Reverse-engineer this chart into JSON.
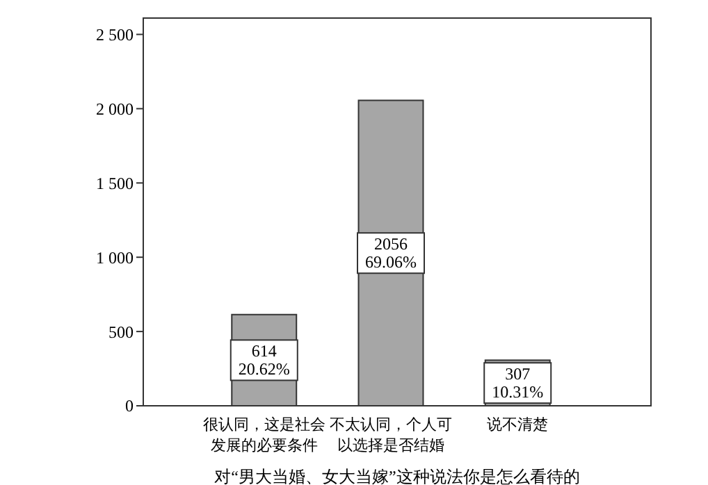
{
  "chart_data": {
    "type": "bar",
    "xlabel": "对“男大当婚、女大当嫁”这种说法你是怎么看待的",
    "categories": [
      "很认同，这是社会发展的必要条件",
      "不太认同，个人可以选择是否结婚",
      "说不清楚"
    ],
    "values": [
      614,
      2056,
      307
    ],
    "value_labels": [
      "614\n20.62%",
      "2056\n69.06%",
      "307\n10.31%"
    ],
    "color": "#a6a6a6",
    "ylim": [
      0,
      2610
    ],
    "yticks": [
      0,
      {
        "value": 500,
        "label": "500"
      },
      {
        "value": 1000,
        "label": "1 000"
      },
      {
        "value": 1500,
        "label": "1 500"
      },
      {
        "value": 2000,
        "label": "2 000"
      },
      {
        "value": 2500,
        "label": "2 500"
      }
    ],
    "grid": false
  }
}
